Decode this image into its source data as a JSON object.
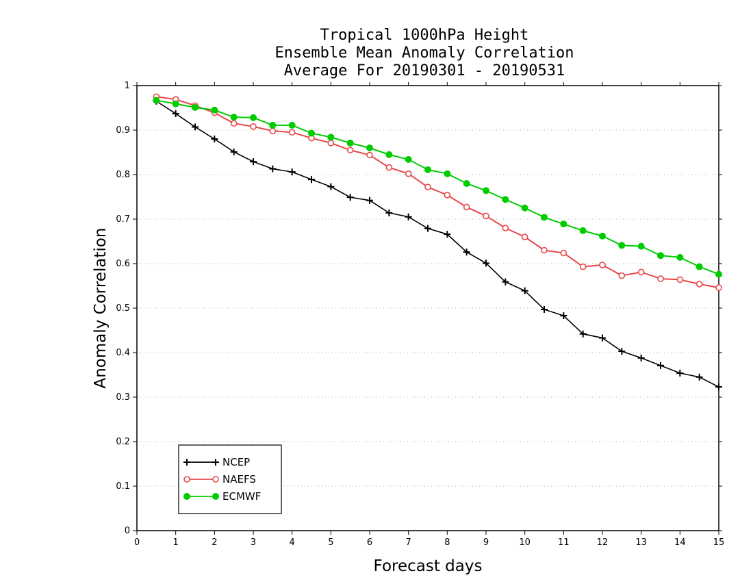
{
  "chart_data": {
    "type": "line",
    "title_lines": [
      "Tropical 1000hPa Height",
      "Ensemble Mean Anomaly Correlation",
      "Average For 20190301 - 20190531"
    ],
    "xlabel": "Forecast days",
    "ylabel": "Anomaly Correlation",
    "xlim": [
      0,
      15
    ],
    "ylim": [
      0,
      1
    ],
    "x_ticks": [
      0,
      1,
      2,
      3,
      4,
      5,
      6,
      7,
      8,
      9,
      10,
      11,
      12,
      13,
      14,
      15
    ],
    "y_ticks": [
      0,
      0.1,
      0.2,
      0.3,
      0.4,
      0.5,
      0.6,
      0.7,
      0.8,
      0.9,
      1
    ],
    "y_tick_labels": [
      "0",
      "0.1",
      "0.2",
      "0.3",
      "0.4",
      "0.5",
      "0.6",
      "0.7",
      "0.8",
      "0.9",
      "1"
    ],
    "grid": "horizontal-dotted",
    "legend_position": "bottom-left",
    "x": [
      0.5,
      1,
      1.5,
      2,
      2.5,
      3,
      3.5,
      4,
      4.5,
      5,
      5.5,
      6,
      6.5,
      7,
      7.5,
      8,
      8.5,
      9,
      9.5,
      10,
      10.5,
      11,
      11.5,
      12,
      12.5,
      13,
      13.5,
      14,
      14.5,
      15
    ],
    "series": [
      {
        "name": "NCEP",
        "color": "#000000",
        "marker": "plus",
        "values": [
          0.965,
          0.937,
          0.907,
          0.88,
          0.851,
          0.829,
          0.813,
          0.806,
          0.789,
          0.773,
          0.749,
          0.742,
          0.714,
          0.705,
          0.679,
          0.666,
          0.626,
          0.601,
          0.559,
          0.539,
          0.497,
          0.483,
          0.442,
          0.433,
          0.403,
          0.388,
          0.371,
          0.354,
          0.345,
          0.323
        ]
      },
      {
        "name": "NAEFS",
        "color": "#e8474a",
        "marker": "open-circle",
        "values": [
          0.975,
          0.969,
          0.955,
          0.939,
          0.915,
          0.908,
          0.898,
          0.895,
          0.882,
          0.871,
          0.855,
          0.844,
          0.816,
          0.802,
          0.772,
          0.754,
          0.727,
          0.707,
          0.68,
          0.66,
          0.63,
          0.624,
          0.593,
          0.597,
          0.573,
          0.581,
          0.566,
          0.564,
          0.554,
          0.546
        ]
      },
      {
        "name": "ECMWF",
        "color": "#00cc00",
        "marker": "filled-circle",
        "values": [
          0.967,
          0.959,
          0.951,
          0.945,
          0.929,
          0.928,
          0.911,
          0.911,
          0.893,
          0.884,
          0.871,
          0.86,
          0.845,
          0.834,
          0.811,
          0.802,
          0.78,
          0.764,
          0.744,
          0.725,
          0.704,
          0.689,
          0.674,
          0.662,
          0.641,
          0.639,
          0.618,
          0.614,
          0.593,
          0.576
        ]
      }
    ]
  }
}
